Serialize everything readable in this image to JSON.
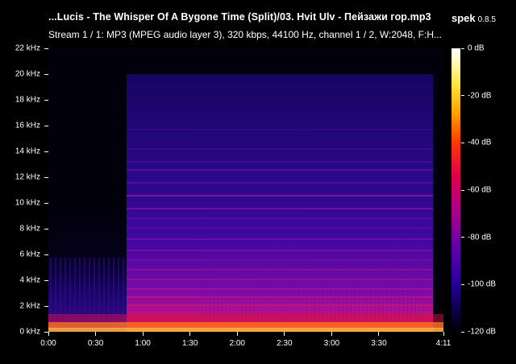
{
  "header": {
    "title": "...Lucis - The Whisper Of A Bygone Time (Split)/03. Hvit Ulv - Пейзажи гор.mp3",
    "stream_info": "Stream 1 / 1: MP3 (MPEG audio layer 3), 320 kbps, 44100 Hz, channel 1 / 2, W:2048, F:H..."
  },
  "app": {
    "name": "spek",
    "version": "0.8.5"
  },
  "frequency_axis": {
    "labels": [
      "0 kHz",
      "2 kHz",
      "4 kHz",
      "6 kHz",
      "8 kHz",
      "10 kHz",
      "12 kHz",
      "14 kHz",
      "16 kHz",
      "18 kHz",
      "20 kHz",
      "22 kHz"
    ],
    "max_khz": 22
  },
  "time_axis": {
    "labels": [
      "0:00",
      "0:30",
      "1:00",
      "1:30",
      "2:00",
      "2:30",
      "3:00",
      "3:30",
      "4:11"
    ],
    "label_seconds": [
      0,
      30,
      60,
      90,
      120,
      150,
      180,
      210,
      251
    ],
    "duration_seconds": 251
  },
  "level_scale": {
    "labels": [
      "0 dB",
      "-20 dB",
      "-40 dB",
      "-60 dB",
      "-80 dB",
      "-100 dB",
      "-120 dB"
    ],
    "values_db": [
      0,
      -20,
      -40,
      -60,
      -80,
      -100,
      -120
    ]
  },
  "colors": {
    "background": "#000000",
    "text": "#ffffff"
  }
}
